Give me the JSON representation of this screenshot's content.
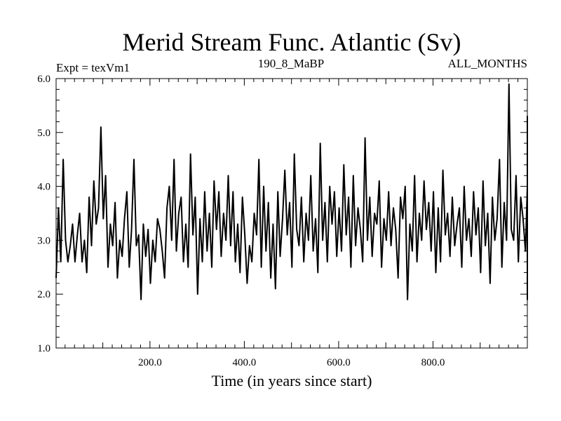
{
  "chart_data": {
    "type": "line",
    "title": "Merid Stream Func. Atlantic (Sv)",
    "header_left": "Expt = texVm1",
    "header_center": "190_8_MaBP",
    "header_right": "ALL_MONTHS",
    "xlabel": "Time (in years since start)",
    "ylabel": "",
    "xlim": [
      1,
      1000
    ],
    "ylim": [
      1.0,
      6.0
    ],
    "x_ticks": [
      200,
      400,
      600,
      800
    ],
    "x_tick_labels": [
      "200.0",
      "400.0",
      "600.0",
      "800.0"
    ],
    "y_ticks": [
      1,
      2,
      3,
      4,
      5,
      6
    ],
    "y_tick_labels": [
      "1.0",
      "2.0",
      "3.0",
      "4.0",
      "5.0",
      "6.0"
    ],
    "grid": false,
    "series": [
      {
        "name": "Merid Stream Func. Atlantic",
        "color": "#000000",
        "x_start": 1,
        "x_step": 5,
        "values": [
          2.3,
          3.6,
          2.6,
          4.5,
          3.0,
          2.6,
          2.9,
          3.3,
          2.6,
          3.1,
          3.5,
          2.6,
          3.0,
          2.4,
          3.8,
          2.9,
          4.1,
          3.3,
          3.6,
          5.1,
          3.4,
          4.2,
          2.5,
          3.3,
          2.9,
          3.7,
          2.3,
          3.0,
          2.7,
          3.4,
          3.9,
          2.5,
          3.2,
          4.5,
          2.9,
          3.1,
          1.9,
          3.3,
          2.7,
          3.2,
          2.2,
          3.0,
          2.6,
          3.4,
          3.2,
          2.8,
          2.3,
          3.6,
          4.0,
          3.0,
          4.5,
          2.8,
          3.5,
          3.8,
          2.6,
          3.3,
          2.5,
          4.6,
          3.1,
          3.8,
          2.0,
          3.4,
          2.6,
          3.9,
          2.8,
          3.5,
          2.5,
          4.1,
          3.2,
          3.9,
          2.7,
          3.5,
          3.0,
          4.2,
          2.9,
          3.9,
          2.6,
          3.3,
          2.4,
          3.8,
          3.1,
          2.2,
          2.9,
          2.6,
          3.5,
          3.1,
          4.5,
          2.5,
          4.0,
          2.8,
          3.7,
          2.3,
          3.3,
          2.1,
          3.9,
          2.7,
          3.4,
          4.3,
          3.1,
          3.7,
          2.5,
          4.6,
          3.2,
          2.9,
          3.8,
          2.6,
          3.5,
          3.0,
          4.2,
          2.8,
          3.4,
          2.4,
          4.8,
          3.0,
          3.7,
          2.6,
          4.0,
          3.3,
          3.9,
          2.7,
          3.6,
          2.8,
          4.4,
          3.1,
          3.8,
          2.5,
          4.2,
          2.9,
          3.6,
          3.2,
          2.6,
          4.9,
          3.0,
          3.8,
          2.7,
          3.5,
          3.3,
          4.1,
          2.5,
          3.4,
          3.0,
          3.9,
          2.9,
          3.6,
          3.2,
          2.3,
          3.8,
          3.4,
          4.0,
          1.9,
          3.3,
          2.8,
          4.2,
          2.6,
          3.5,
          3.0,
          4.1,
          3.2,
          3.7,
          2.8,
          3.9,
          2.4,
          3.6,
          2.6,
          4.3,
          3.1,
          3.5,
          2.7,
          3.8,
          2.9,
          3.3,
          3.6,
          2.5,
          4.0,
          3.0,
          3.4,
          2.7,
          3.9,
          3.1,
          3.6,
          2.4,
          4.1,
          2.9,
          3.5,
          2.2,
          3.8,
          3.0,
          3.4,
          4.5,
          2.5,
          3.7,
          3.0,
          5.9,
          3.2,
          3.0,
          4.2,
          2.6,
          3.8,
          3.4,
          2.8,
          4.0,
          3.1,
          3.5,
          3.9,
          2.6,
          4.4,
          3.0,
          3.7,
          3.2,
          2.8,
          3.6,
          1.9,
          3.4,
          2.7,
          4.3,
          3.0,
          3.8,
          3.3,
          4.9,
          2.9,
          3.6,
          3.1,
          4.2,
          2.8,
          3.9,
          3.3,
          4.6,
          2.6,
          3.7,
          3.0,
          4.1,
          2.9,
          3.5,
          2.3,
          3.8,
          3.2,
          4.4,
          3.6,
          3.0,
          4.2,
          3.4,
          3.9,
          2.8,
          4.7,
          3.1,
          4.0,
          3.5,
          3.8,
          2.7,
          4.2,
          2.4,
          3.8,
          2.9,
          4.5,
          3.3,
          3.9,
          2.7,
          4.1,
          3.5,
          3.0,
          4.3,
          2.9,
          3.6,
          2.2,
          3.9,
          2.6,
          4.4,
          3.2,
          3.8,
          3.0,
          4.6,
          2.8,
          3.5,
          3.3,
          4.1,
          2.5,
          3.7,
          3.1,
          4.2,
          2.9,
          3.6,
          3.4,
          2.8,
          5.2,
          3.0,
          4.0,
          3.4,
          4.5,
          2.6,
          3.8,
          2.9,
          4.3,
          3.1,
          3.7,
          2.7,
          4.2,
          2.5,
          3.6,
          3.3,
          4.8,
          2.9,
          3.9,
          3.2,
          4.0,
          2.2,
          3.7,
          2.8,
          4.3,
          3.1,
          4.5,
          3.4,
          3.0,
          4.1,
          2.7,
          3.8,
          3.2,
          4.4,
          2.5,
          3.9,
          2.9,
          3.6,
          3.3,
          4.2,
          2.6,
          3.4,
          3.0,
          5.3,
          2.8,
          3.7,
          3.2,
          4.6,
          2.9,
          3.8,
          2.4,
          4.0,
          3.1,
          3.6,
          3.5,
          4.2,
          2.8,
          3.9,
          3.3,
          4.4,
          2.6,
          3.5,
          3.0,
          4.3,
          2.9,
          3.7,
          1.9,
          3.8,
          3.2,
          4.8,
          3.0,
          3.5,
          2.7,
          4.2,
          3.3,
          3.9,
          2.5,
          4.1,
          3.0,
          3.6,
          3.4,
          4.3,
          2.8,
          3.8,
          3.1,
          5.1,
          2.6,
          3.7,
          3.2,
          4.0,
          2.9,
          4.5,
          3.4,
          3.5,
          2.7,
          3.9,
          3.1,
          4.6,
          2.8,
          3.3,
          3.0,
          4.2,
          2.5,
          3.7,
          3.2,
          4.4,
          2.9,
          3.6,
          3.4,
          5.3,
          2.6,
          4.0,
          3.0,
          3.5
        ]
      }
    ]
  }
}
